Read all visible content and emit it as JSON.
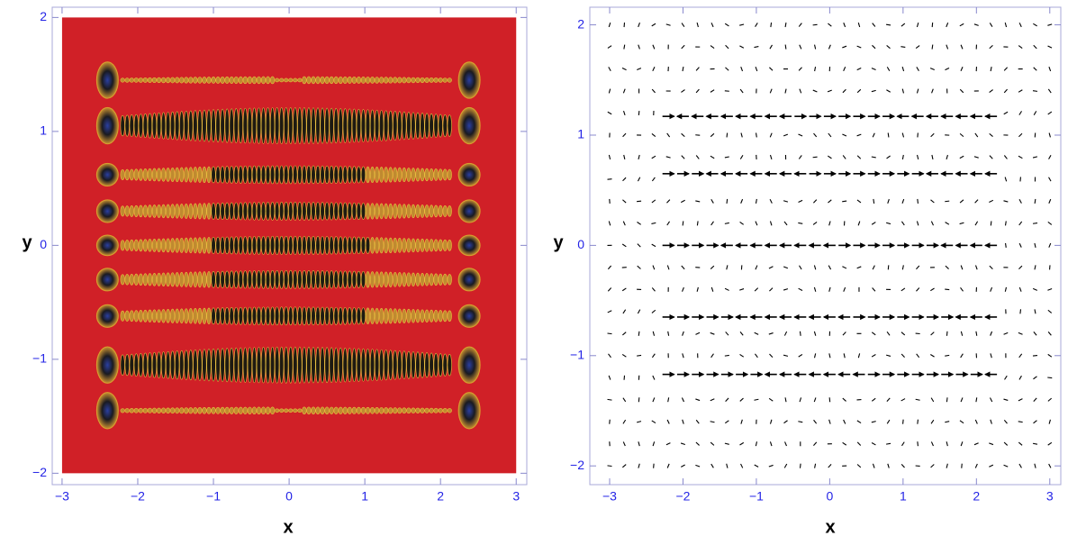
{
  "chart_data": [
    {
      "type": "contour",
      "x_label": "x",
      "y_label": "y",
      "xlim": [
        -3.13,
        3.14
      ],
      "ylim": [
        -2.1,
        2.09
      ],
      "xticks": [
        {
          "value": -3,
          "label": "−3"
        },
        {
          "value": -2,
          "label": "−2"
        },
        {
          "value": -1,
          "label": "−1"
        },
        0,
        1,
        2,
        3
      ],
      "yticks": [
        {
          "value": -2,
          "label": "−2"
        },
        {
          "value": -1,
          "label": "−1"
        },
        0,
        1,
        2
      ],
      "color": "#d02027"
    },
    {
      "type": "vector",
      "x_label": "x",
      "y_label": "y",
      "xlim": [
        -3.27,
        3.15
      ],
      "ylim": [
        -2.17,
        2.16
      ],
      "xticks": [
        {
          "value": -3,
          "label": "−3"
        },
        {
          "value": -2,
          "label": "−2"
        },
        {
          "value": -1,
          "label": "−1"
        },
        0,
        1,
        2,
        3
      ],
      "yticks": [
        {
          "value": -2,
          "label": "−2"
        },
        {
          "value": -1,
          "label": "−1"
        },
        0,
        1,
        2
      ],
      "color": "#000000"
    }
  ]
}
